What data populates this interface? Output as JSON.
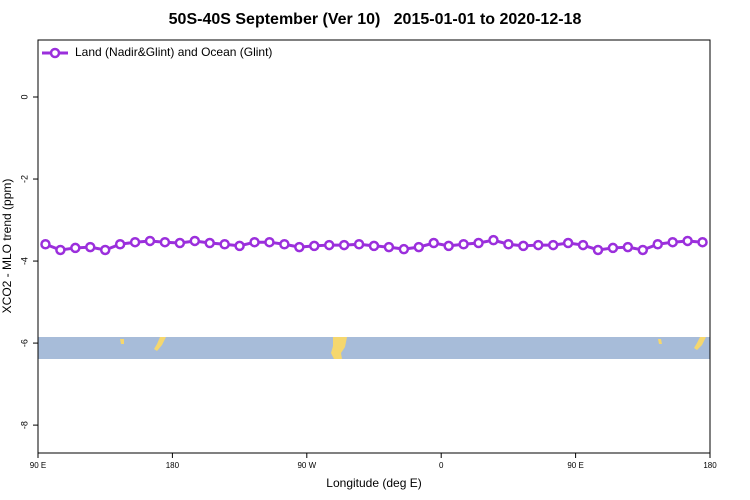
{
  "chart_data": {
    "type": "line",
    "title": "50S-40S September (Ver 10)   2015-01-01 to 2020-12-18",
    "xlabel": "Longitude (deg E)",
    "ylabel": "XCO2 - MLO trend (ppm)",
    "x": [
      95,
      105,
      115,
      125,
      135,
      145,
      155,
      165,
      175,
      185,
      195,
      205,
      215,
      225,
      235,
      245,
      255,
      265,
      275,
      285,
      295,
      305,
      315,
      325,
      335,
      345,
      355,
      365,
      375,
      385,
      395,
      405,
      415,
      425,
      435,
      445,
      455,
      465,
      475,
      485,
      495,
      505,
      515,
      525,
      535
    ],
    "series": [
      {
        "name": "Land (Nadir&Glint) and Ocean (Glint)",
        "color": "#9b2fdc",
        "values": [
          -3.59,
          -3.73,
          -3.68,
          -3.66,
          -3.73,
          -3.59,
          -3.54,
          -3.51,
          -3.54,
          -3.56,
          -3.51,
          -3.56,
          -3.59,
          -3.63,
          -3.54,
          -3.54,
          -3.59,
          -3.66,
          -3.63,
          -3.61,
          -3.61,
          -3.59,
          -3.63,
          -3.66,
          -3.71,
          -3.66,
          -3.56,
          -3.63,
          -3.59,
          -3.56,
          -3.49,
          -3.59,
          -3.63,
          -3.61,
          -3.61,
          -3.56,
          -3.61,
          -3.73,
          -3.68,
          -3.66,
          -3.73,
          -3.59,
          -3.54,
          -3.51,
          -3.54
        ]
      }
    ],
    "xlim": [
      90,
      540
    ],
    "xticks": [
      {
        "value": 90,
        "label": "90 E"
      },
      {
        "value": 180,
        "label": "180"
      },
      {
        "value": 270,
        "label": "90 W"
      },
      {
        "value": 360,
        "label": "0"
      },
      {
        "value": 450,
        "label": "90 E"
      },
      {
        "value": 540,
        "label": "180"
      }
    ],
    "ylim": [
      -8.68,
      1.39
    ],
    "yticks": [
      0,
      -2,
      -4,
      -6,
      -8
    ],
    "grid": false,
    "legend": "upper left"
  }
}
